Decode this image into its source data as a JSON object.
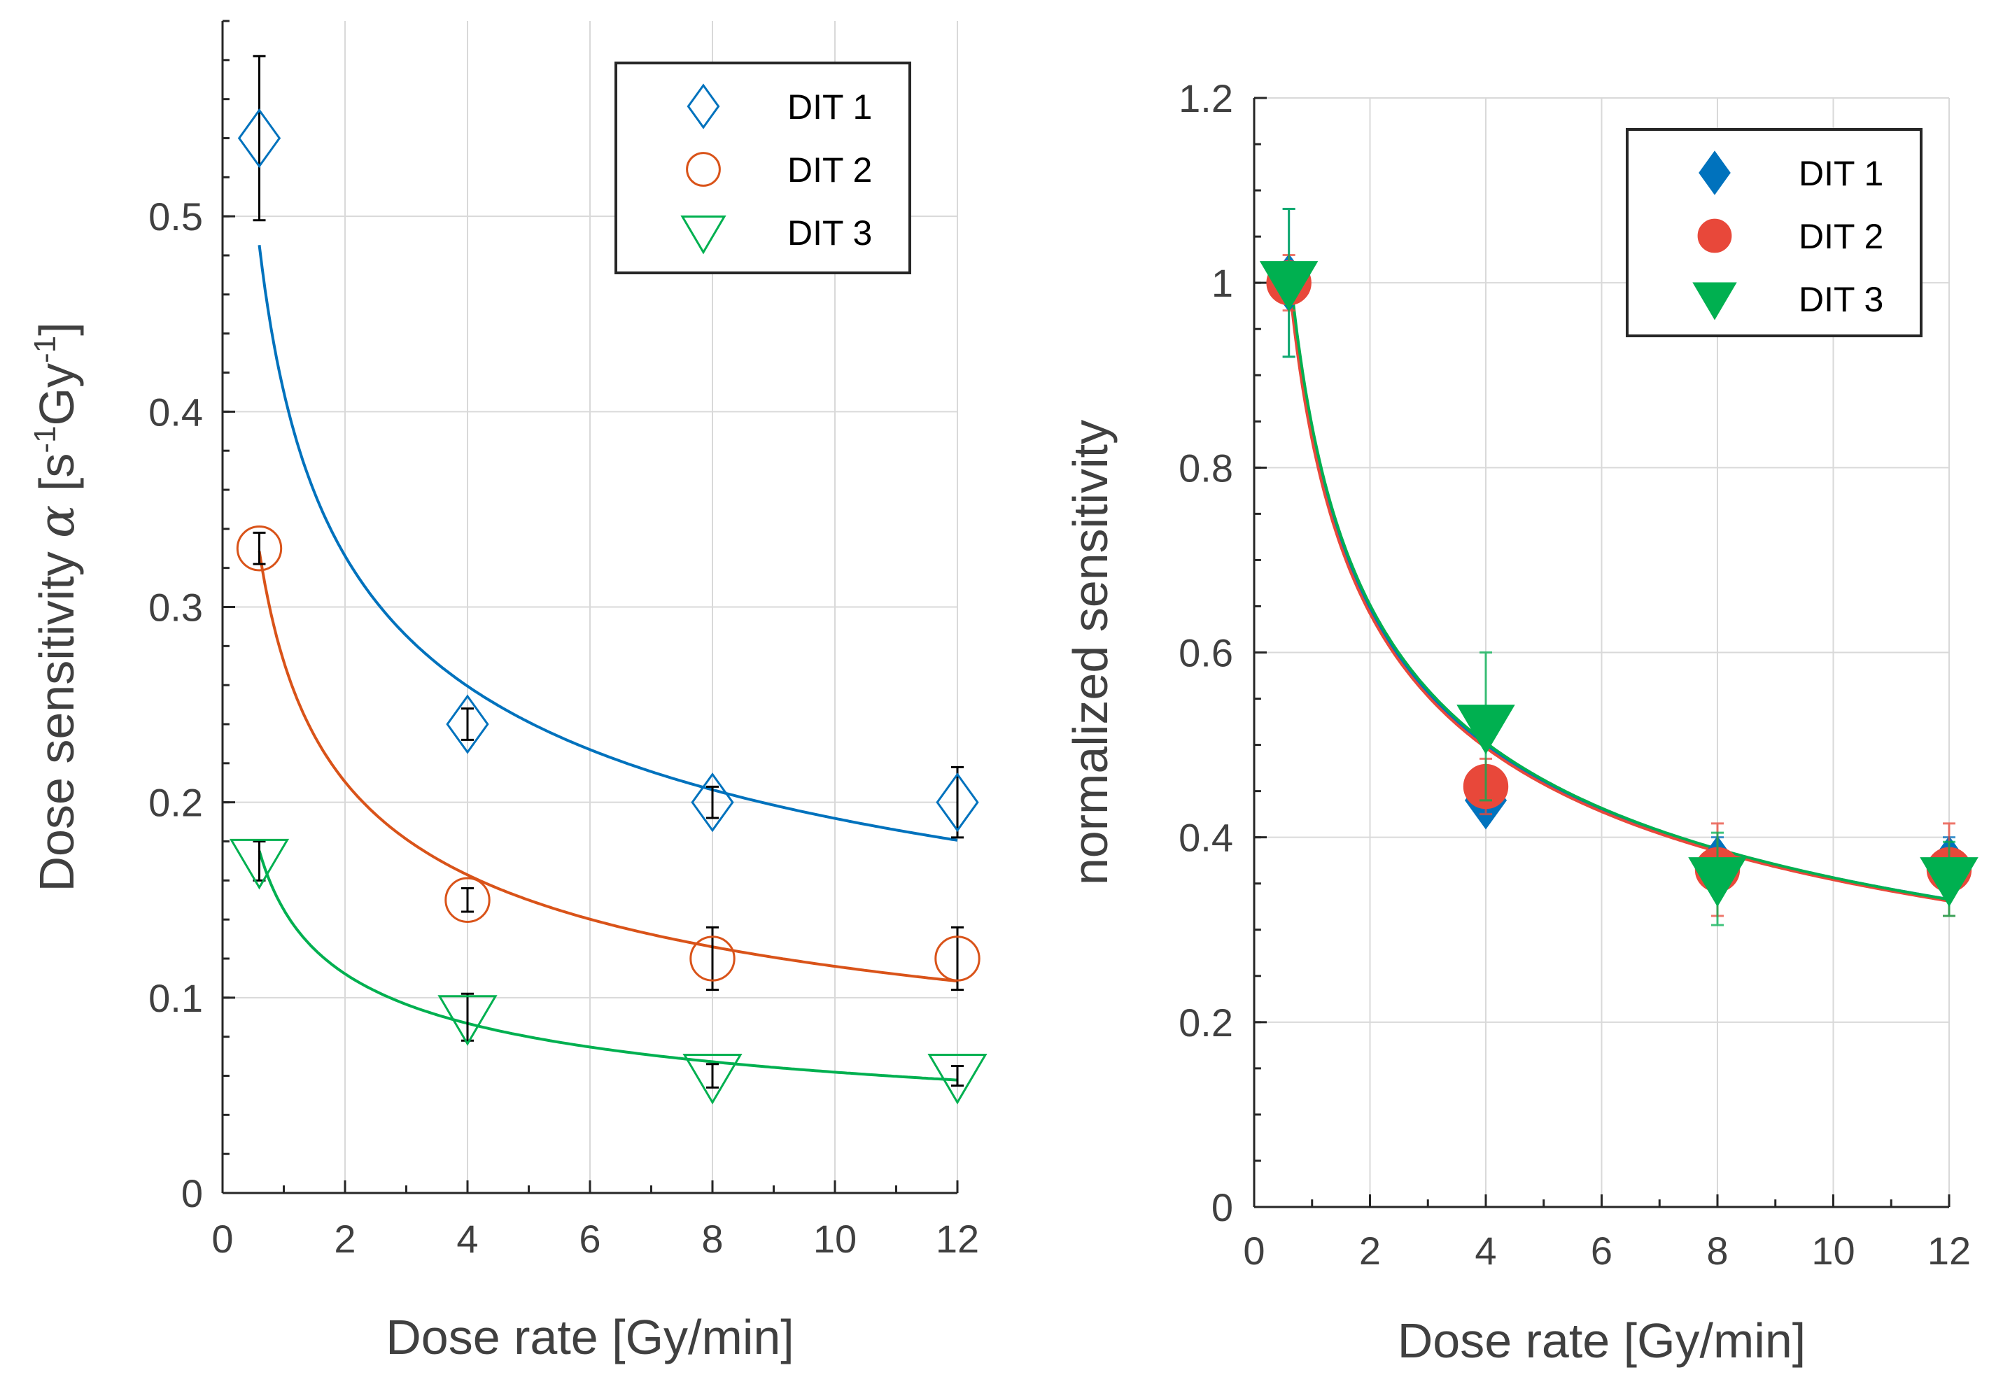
{
  "chart_data": [
    {
      "type": "scatter",
      "xlabel": "Dose rate [Gy/min]",
      "ylabel": "Dose sensitivity α [s⁻¹Gy⁻¹]",
      "ylabel_parts": {
        "main": "Dose sensitivity ",
        "symbol": "α",
        "unit_open": " [s",
        "exp1": "-1",
        "unit_mid": "Gy",
        "exp2": "-1",
        "unit_close": "]"
      },
      "xlim": [
        0,
        12
      ],
      "ylim": [
        0,
        0.6
      ],
      "xticks": [
        0,
        2,
        4,
        6,
        8,
        10,
        12
      ],
      "xtick_labels": [
        "0",
        "2",
        "4",
        "6",
        "8",
        "10",
        "12"
      ],
      "yticks": [
        0,
        0.1,
        0.2,
        0.3,
        0.4,
        0.5
      ],
      "ytick_labels": [
        "0",
        "0.1",
        "0.2",
        "0.3",
        "0.4",
        "0.5"
      ],
      "grid": true,
      "legend_position": "top-right",
      "errorbar_color": "#000000",
      "series": [
        {
          "name": "DIT 1",
          "marker": "diamond-open",
          "color": "#0072bd",
          "x": [
            0.6,
            4,
            8,
            12
          ],
          "y": [
            0.54,
            0.24,
            0.2,
            0.2
          ],
          "err": [
            0.042,
            0.008,
            0.008,
            0.018
          ],
          "fit": {
            "form": "a*x^b",
            "a": 0.41,
            "b": -0.33
          }
        },
        {
          "name": "DIT 2",
          "marker": "circle-open",
          "color": "#d95319",
          "x": [
            0.6,
            4,
            8,
            12
          ],
          "y": [
            0.33,
            0.15,
            0.12,
            0.12
          ],
          "err": [
            0.008,
            0.006,
            0.016,
            0.016
          ],
          "fit": {
            "form": "a*x^b",
            "a": 0.272,
            "b": -0.37
          }
        },
        {
          "name": "DIT 3",
          "marker": "triangle-down-open",
          "color": "#00b050",
          "x": [
            0.6,
            4,
            8,
            12
          ],
          "y": [
            0.17,
            0.09,
            0.06,
            0.06
          ],
          "err": [
            0.01,
            0.012,
            0.006,
            0.005
          ],
          "fit": {
            "form": "a*x^b",
            "a": 0.145,
            "b": -0.37
          }
        }
      ]
    },
    {
      "type": "scatter",
      "xlabel": "Dose rate [Gy/min]",
      "ylabel": "normalized sensitivity",
      "xlim": [
        0,
        12
      ],
      "ylim": [
        0,
        1.2
      ],
      "xticks": [
        0,
        2,
        4,
        6,
        8,
        10,
        12
      ],
      "xtick_labels": [
        "0",
        "2",
        "4",
        "6",
        "8",
        "10",
        "12"
      ],
      "yticks": [
        0,
        0.2,
        0.4,
        0.6,
        0.8,
        1,
        1.2
      ],
      "ytick_labels": [
        "0",
        "0.2",
        "0.4",
        "0.6",
        "0.8",
        "1",
        "1.2"
      ],
      "grid": true,
      "legend_position": "top-right",
      "series": [
        {
          "name": "DIT 1",
          "marker": "diamond-filled",
          "color": "#0072bd",
          "x": [
            0.6,
            4,
            8,
            12
          ],
          "y": [
            1.0,
            0.44,
            0.37,
            0.37
          ],
          "err": [
            0.08,
            0.02,
            0.03,
            0.03
          ],
          "fit": {
            "form": "a*x^b",
            "a": 0.835,
            "b": -0.37
          }
        },
        {
          "name": "DIT 2",
          "marker": "circle-filled",
          "color": "#e8483a",
          "x": [
            0.6,
            4,
            8,
            12
          ],
          "y": [
            1.0,
            0.455,
            0.365,
            0.365
          ],
          "err": [
            0.03,
            0.03,
            0.05,
            0.05
          ],
          "fit": {
            "form": "a*x^b",
            "a": 0.83,
            "b": -0.37
          }
        },
        {
          "name": "DIT 3",
          "marker": "triangle-down-filled",
          "color": "#00b050",
          "x": [
            0.6,
            4,
            8,
            12
          ],
          "y": [
            1.0,
            0.52,
            0.355,
            0.355
          ],
          "err": [
            0.08,
            0.08,
            0.05,
            0.04
          ],
          "fit": {
            "form": "a*x^b",
            "a": 0.845,
            "b": -0.375
          }
        }
      ]
    }
  ]
}
